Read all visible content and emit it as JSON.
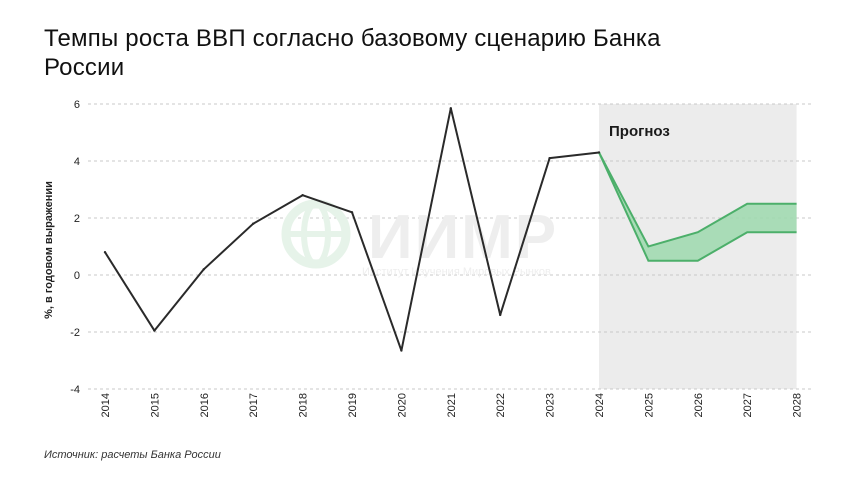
{
  "title": "Темпы роста ВВП согласно базовому сценарию Банка России",
  "source": "Источник: расчеты Банка России",
  "watermark": {
    "text": "ИИМР",
    "subtitle": "Институт Изучения Мировых Рынков"
  },
  "colors": {
    "line": "#2a2a2a",
    "forecast_line": "#4caf6a",
    "forecast_fill": "#9ed9ae",
    "forecast_bg": "#ececec",
    "grid": "#c8c8c8"
  },
  "chart_data": {
    "type": "line",
    "title": "Темпы роста ВВП согласно базовому сценарию Банка России",
    "ylabel": "%, в годовом выражении",
    "xlabel": "",
    "ylim": [
      -4,
      6
    ],
    "yticks": [
      -4,
      -2,
      0,
      2,
      4,
      6
    ],
    "grid": "horizontal dashed",
    "categories": [
      "2014",
      "2015",
      "2016",
      "2017",
      "2018",
      "2019",
      "2020",
      "2021",
      "2022",
      "2023",
      "2024",
      "2025",
      "2026",
      "2027",
      "2028"
    ],
    "series": [
      {
        "type": "line",
        "x": [
          "2014",
          "2015",
          "2016",
          "2017",
          "2018",
          "2019",
          "2020",
          "2021",
          "2022",
          "2023",
          "2024"
        ],
        "values": [
          0.8,
          -1.95,
          0.2,
          1.8,
          2.8,
          2.2,
          -2.65,
          5.85,
          -1.4,
          4.1,
          4.3
        ]
      },
      {
        "type": "range",
        "x": [
          "2024",
          "2025",
          "2026",
          "2027",
          "2028"
        ],
        "upper": [
          4.3,
          1.0,
          1.5,
          2.5,
          2.5
        ],
        "lower": [
          4.3,
          0.5,
          0.5,
          1.5,
          1.5
        ]
      }
    ],
    "annotations": [
      {
        "text": "Прогноз",
        "region": [
          "2024",
          "2028"
        ]
      }
    ]
  }
}
